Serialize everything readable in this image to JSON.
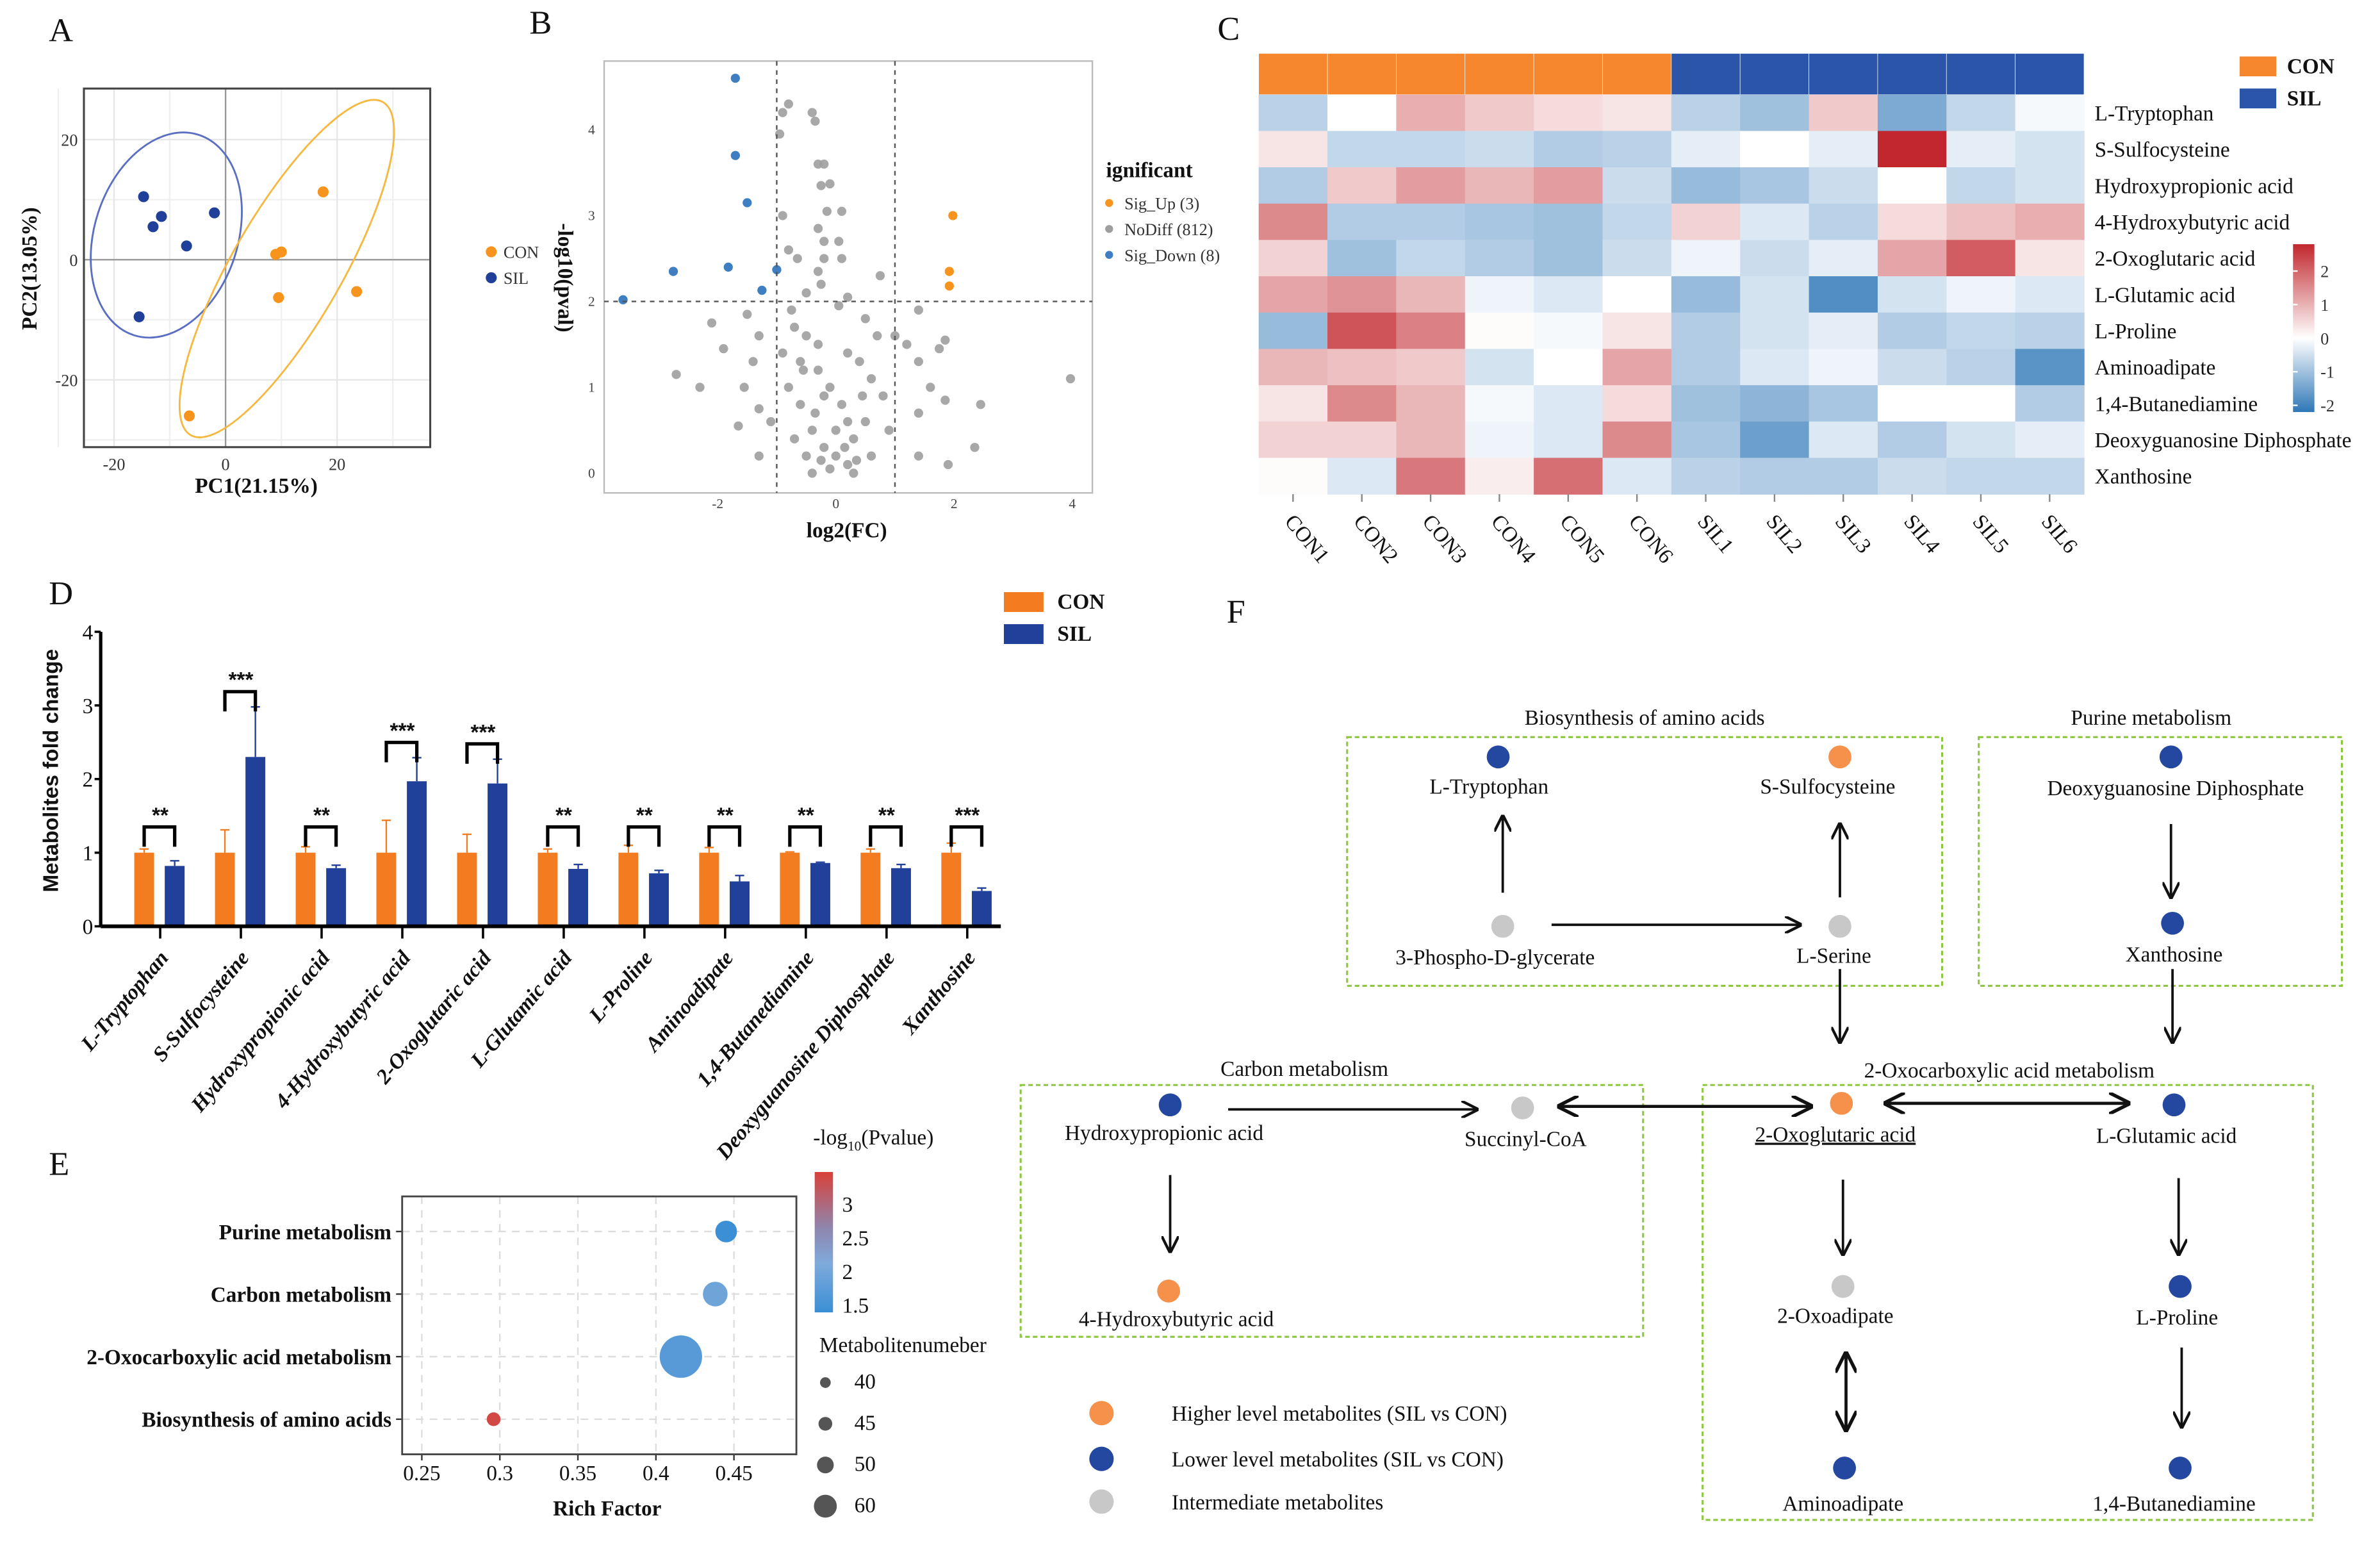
{
  "panel_labels": {
    "A": "A",
    "B": "B",
    "C": "C",
    "D": "D",
    "E": "E",
    "F": "F"
  },
  "colors": {
    "con": "#f7941d",
    "sil": "#1f3f99",
    "gray": "#9e9e9e",
    "sig_down": "#3f7fc1",
    "bar_con": "#f47c20",
    "bar_sil": "#21409a",
    "box": "#8dc63f",
    "hi_red": "#c1272d",
    "lo_blue": "#2f77b7"
  },
  "chart_data": [
    {
      "id": "A",
      "type": "scatter",
      "xlabel": "PC1(21.15%)",
      "ylabel": "PC2(13.05%)",
      "xlim": [
        -25.4,
        36.7
      ],
      "ylim": [
        -31.2,
        28.5
      ],
      "xticks": [
        "-20",
        "0",
        "20"
      ],
      "xtick_values": [
        -20,
        0,
        20
      ],
      "yticks": [
        "20",
        "0",
        "-20"
      ],
      "ytick_values": [
        20,
        0,
        -20
      ],
      "grid": true,
      "legend_placement": "right",
      "series": [
        {
          "name": "CON",
          "color": "#f7941d",
          "points": [
            [
              17.5,
              11.3
            ],
            [
              9,
              0.9
            ],
            [
              10,
              1.3
            ],
            [
              9.5,
              -6.3
            ],
            [
              23.5,
              -5.3
            ],
            [
              -6.5,
              -26
            ]
          ]
        },
        {
          "name": "SIL",
          "color": "#1f3f99",
          "points": [
            [
              -14.7,
              10.5
            ],
            [
              -13,
              5.5
            ],
            [
              -11.5,
              7.2
            ],
            [
              -7,
              2.3
            ],
            [
              -2,
              7.8
            ],
            [
              -15.5,
              -9.5
            ]
          ]
        }
      ]
    },
    {
      "id": "B",
      "type": "scatter",
      "xlabel": "log2(FC)",
      "ylabel": "-log10(pval)",
      "xlim": [
        -3.92,
        4.34
      ],
      "ylim": [
        -0.23,
        4.8
      ],
      "xticks": [
        "-2",
        "0",
        "2",
        "4"
      ],
      "xtick_values": [
        -2,
        0,
        2,
        4
      ],
      "yticks": [
        "0",
        "1",
        "2",
        "3",
        "4"
      ],
      "ytick_values": [
        0,
        1,
        2,
        3,
        4
      ],
      "thresholds": {
        "x": [
          -1,
          1
        ],
        "y": 2
      },
      "legend_title": "ignificant",
      "legend_placement": "right",
      "series": [
        {
          "name": "Sig_Up (3)",
          "color": "#f7941d",
          "points": [
            [
              1.98,
              3.0
            ],
            [
              1.92,
              2.35
            ],
            [
              1.92,
              2.18
            ]
          ]
        },
        {
          "name": "NoDiff (812)",
          "color": "#9e9e9e",
          "points": [
            [
              -0.8,
              4.3
            ],
            [
              -0.9,
              4.2
            ],
            [
              -0.4,
              4.2
            ],
            [
              -0.35,
              4.1
            ],
            [
              -0.95,
              3.95
            ],
            [
              -0.2,
              3.6
            ],
            [
              -0.3,
              3.6
            ],
            [
              -0.25,
              3.35
            ],
            [
              -0.1,
              3.37
            ],
            [
              -0.9,
              3.0
            ],
            [
              -0.15,
              3.05
            ],
            [
              0.1,
              3.05
            ],
            [
              -0.3,
              2.85
            ],
            [
              -0.2,
              2.7
            ],
            [
              0.05,
              2.7
            ],
            [
              -0.2,
              2.5
            ],
            [
              0.1,
              2.5
            ],
            [
              -0.8,
              2.6
            ],
            [
              -0.65,
              2.5
            ],
            [
              -0.3,
              2.35
            ],
            [
              0.75,
              2.3
            ],
            [
              -0.25,
              2.2
            ],
            [
              -0.5,
              2.1
            ],
            [
              0.2,
              2.05
            ],
            [
              0.05,
              1.95
            ],
            [
              1.4,
              1.9
            ],
            [
              -2.1,
              1.75
            ],
            [
              -1.5,
              1.85
            ],
            [
              -1.3,
              1.6
            ],
            [
              -1.9,
              1.45
            ],
            [
              -2.7,
              1.15
            ],
            [
              -2.3,
              1.0
            ],
            [
              -1.55,
              1.0
            ],
            [
              -1.3,
              0.75
            ],
            [
              -1.65,
              0.55
            ],
            [
              -1.3,
              0.2
            ],
            [
              -1.1,
              0.6
            ],
            [
              -1.4,
              1.3
            ],
            [
              -0.7,
              1.7
            ],
            [
              -0.5,
              1.6
            ],
            [
              -0.3,
              1.5
            ],
            [
              0.2,
              1.4
            ],
            [
              0.5,
              1.8
            ],
            [
              0.7,
              1.6
            ],
            [
              1.0,
              1.6
            ],
            [
              1.2,
              1.5
            ],
            [
              1.85,
              1.55
            ],
            [
              1.75,
              1.45
            ],
            [
              1.4,
              1.3
            ],
            [
              1.6,
              1.0
            ],
            [
              1.85,
              0.85
            ],
            [
              2.45,
              0.8
            ],
            [
              1.4,
              0.7
            ],
            [
              2.35,
              0.3
            ],
            [
              1.9,
              0.1
            ],
            [
              3.97,
              1.1
            ],
            [
              1.4,
              0.2
            ],
            [
              -0.8,
              1.0
            ],
            [
              -0.6,
              0.8
            ],
            [
              -0.4,
              0.5
            ],
            [
              -0.2,
              0.3
            ],
            [
              0,
              0.2
            ],
            [
              0.2,
              0.1
            ],
            [
              -0.1,
              0.05
            ],
            [
              0.3,
              0.4
            ],
            [
              0.5,
              0.6
            ],
            [
              0.6,
              1.1
            ],
            [
              0.8,
              0.9
            ],
            [
              -0.5,
              0.2
            ],
            [
              -0.3,
              1.2
            ],
            [
              0.1,
              0.8
            ],
            [
              0.4,
              1.3
            ],
            [
              -0.7,
              0.4
            ],
            [
              0.6,
              0.2
            ],
            [
              0.9,
              0.5
            ],
            [
              -0.9,
              1.4
            ],
            [
              0.0,
              0.5
            ],
            [
              -0.2,
              0.9
            ],
            [
              0.3,
              0.0
            ],
            [
              -0.4,
              0.0
            ],
            [
              -0.6,
              1.3
            ],
            [
              -0.1,
              1.0
            ],
            [
              0.2,
              0.6
            ],
            [
              -0.35,
              0.7
            ],
            [
              0.45,
              0.9
            ],
            [
              -0.75,
              1.9
            ],
            [
              -0.55,
              1.2
            ],
            [
              0.15,
              0.3
            ],
            [
              -0.25,
              0.15
            ],
            [
              0.35,
              0.15
            ]
          ]
        },
        {
          "name": "Sig_Down (8)",
          "color": "#3f7fc1",
          "points": [
            [
              -1.7,
              4.6
            ],
            [
              -1.7,
              3.7
            ],
            [
              -1.5,
              3.15
            ],
            [
              -2.75,
              2.35
            ],
            [
              -1.82,
              2.4
            ],
            [
              -1.0,
              2.37
            ],
            [
              -1.25,
              2.13
            ],
            [
              -3.6,
              2.02
            ]
          ]
        }
      ]
    },
    {
      "id": "C",
      "type": "heatmap",
      "columns": [
        "CON1",
        "CON2",
        "CON3",
        "CON4",
        "CON5",
        "CON6",
        "SIL1",
        "SIL2",
        "SIL3",
        "SIL4",
        "SIL5",
        "SIL6"
      ],
      "column_groups": [
        "CON",
        "CON",
        "CON",
        "CON",
        "CON",
        "CON",
        "SIL",
        "SIL",
        "SIL",
        "SIL",
        "SIL",
        "SIL"
      ],
      "group_legend": [
        {
          "name": "CON",
          "color": "#f7872e"
        },
        {
          "name": "SIL",
          "color": "#2b55a8"
        }
      ],
      "rows": [
        "L-Tryptophan",
        "S-Sulfocysteine",
        "Hydroxypropionic acid",
        "4-Hydroxybutyric acid",
        "2-Oxoglutaric acid",
        "L-Glutamic acid",
        "L-Proline",
        "Aminoadipate",
        "1,4-Butanediamine",
        "Deoxyguanosine Diphosphate",
        "Xanthosine"
      ],
      "values": [
        [
          -0.8,
          0,
          0.9,
          0.6,
          0.4,
          0.3,
          -0.8,
          -1.1,
          0.6,
          -1.5,
          -0.7,
          -0.1
        ],
        [
          0.3,
          -0.7,
          -0.7,
          -0.6,
          -0.9,
          -0.8,
          -0.3,
          0,
          -0.3,
          2.6,
          -0.3,
          -0.5
        ],
        [
          -0.9,
          0.6,
          1.1,
          0.8,
          1.1,
          -0.6,
          -1.2,
          -1.0,
          -0.6,
          0,
          -0.7,
          -0.5
        ],
        [
          1.3,
          -0.9,
          -0.9,
          -1.0,
          -1.1,
          -0.7,
          0.5,
          -0.4,
          -0.8,
          0.4,
          0.7,
          0.9
        ],
        [
          0.5,
          -1.1,
          -0.7,
          -0.9,
          -1.1,
          -0.6,
          -0.2,
          -0.6,
          -0.3,
          1.0,
          1.8,
          0.3
        ],
        [
          1.0,
          1.2,
          0.8,
          -0.2,
          -0.4,
          0,
          -1.2,
          -0.5,
          -2.0,
          -0.5,
          -0.2,
          -0.4
        ],
        [
          -1.2,
          1.9,
          1.4,
          0.05,
          -0.1,
          0.3,
          -0.9,
          -0.5,
          -0.3,
          -0.9,
          -0.7,
          -0.8
        ],
        [
          0.8,
          0.7,
          0.6,
          -0.5,
          0,
          1.0,
          -0.9,
          -0.4,
          -0.2,
          -0.6,
          -0.8,
          -1.9
        ],
        [
          0.3,
          1.3,
          0.8,
          -0.1,
          -0.4,
          0.4,
          -1.1,
          -1.3,
          -1.0,
          0,
          0,
          -0.9
        ],
        [
          0.5,
          0.5,
          0.8,
          -0.2,
          -0.4,
          1.3,
          -1.0,
          -1.7,
          -0.4,
          -0.9,
          -0.5,
          -0.3
        ],
        [
          0.05,
          -0.4,
          1.5,
          0.2,
          1.6,
          -0.4,
          -0.8,
          -0.9,
          -0.9,
          -0.6,
          -0.7,
          -0.7
        ]
      ],
      "colorbar": {
        "range": [
          -2.2,
          2.8
        ],
        "ticks": [
          "2",
          "1",
          "0",
          "-1",
          "-2"
        ],
        "tick_values": [
          2,
          1,
          0,
          -1,
          -2
        ],
        "low": "#2f77b7",
        "mid": "#ffffff",
        "high": "#c1272d"
      }
    },
    {
      "id": "D",
      "type": "bar",
      "ylabel": "Metabolites fold change",
      "ylim": [
        0,
        4
      ],
      "yticks": [
        "0",
        "1",
        "2",
        "3",
        "4"
      ],
      "ytick_values": [
        0,
        1,
        2,
        3,
        4
      ],
      "legend_placement": "top-right",
      "categories": [
        "L-Tryptophan",
        "S-Sulfocysteine",
        "Hydroxypropionic acid",
        "4-Hydroxybutyric acid",
        "2-Oxoglutaric acid",
        "L-Glutamic acid",
        "L-Proline",
        "Aminoadipate",
        "1,4-Butanediamine",
        "Deoxyguanosine Diphosphate",
        "Xanthosine"
      ],
      "series": [
        {
          "name": "CON",
          "color": "#f47c20",
          "values": [
            1,
            1,
            1,
            1,
            1,
            1,
            1,
            1,
            1,
            1,
            1
          ],
          "errors": [
            0.05,
            0.31,
            0.08,
            0.44,
            0.25,
            0.05,
            0.1,
            0.07,
            0.01,
            0.05,
            0.13
          ]
        },
        {
          "name": "SIL",
          "color": "#21409a",
          "values": [
            0.82,
            2.3,
            0.79,
            1.97,
            1.94,
            0.78,
            0.72,
            0.61,
            0.86,
            0.79,
            0.48
          ],
          "errors": [
            0.07,
            0.68,
            0.04,
            0.32,
            0.33,
            0.06,
            0.04,
            0.08,
            0.01,
            0.05,
            0.04
          ]
        }
      ],
      "significance": [
        "**",
        "***",
        "**",
        "***",
        "***",
        "**",
        "**",
        "**",
        "**",
        "**",
        "***"
      ]
    },
    {
      "id": "E",
      "type": "scatter",
      "xlabel": "Rich Factor",
      "xlim": [
        0.2374,
        0.49
      ],
      "xticks": [
        "0.25",
        "0.3",
        "0.35",
        "0.4",
        "0.45"
      ],
      "xtick_values": [
        0.25,
        0.3,
        0.35,
        0.4,
        0.45
      ],
      "categories": [
        "Purine metabolism",
        "Carbon metabolism",
        "2-Oxocarboxylic acid metabolism",
        "Biosynthesis of amino acids"
      ],
      "rich_factor": [
        0.445,
        0.438,
        0.416,
        0.296
      ],
      "neg_log10_p": [
        1.4,
        1.95,
        1.7,
        3.4
      ],
      "metabolite_number": [
        58,
        63,
        92,
        45
      ],
      "color_legend": {
        "title_prefix": "-log",
        "title_sub": "10",
        "title_suffix": "(Pvalue)",
        "range": [
          1.39,
          3.48
        ],
        "ticks": [
          "3",
          "2.5",
          "2",
          "1.5"
        ],
        "tick_values": [
          3,
          2.5,
          2,
          1.5
        ],
        "low": "#3a8fd4",
        "high": "#d9413a"
      },
      "size_legend": {
        "title": "Metabolitenumeber",
        "labels": [
          "40",
          "45",
          "50",
          "60"
        ],
        "values": [
          40,
          45,
          50,
          60
        ]
      },
      "grid": true
    }
  ],
  "pathway": {
    "boxes": [
      {
        "title": "Biosynthesis of amino acids"
      },
      {
        "title": "Purine metabolism"
      },
      {
        "title": "Carbon metabolism"
      },
      {
        "title": "2-Oxocarboxylic acid metabolism"
      }
    ],
    "nodes": [
      {
        "label": "L-Tryptophan",
        "level": "lower"
      },
      {
        "label": "S-Sulfocysteine",
        "level": "higher"
      },
      {
        "label": "Deoxyguanosine Diphosphate",
        "level": "lower"
      },
      {
        "label": "3-Phospho-D-glycerate",
        "level": "intermediate"
      },
      {
        "label": "L-Serine",
        "level": "intermediate"
      },
      {
        "label": "Xanthosine",
        "level": "lower"
      },
      {
        "label": "Hydroxypropionic acid",
        "level": "lower"
      },
      {
        "label": "Succinyl-CoA",
        "level": "intermediate"
      },
      {
        "label": "2-Oxoglutaric acid",
        "level": "higher",
        "highlighted": true
      },
      {
        "label": "L-Glutamic acid",
        "level": "lower"
      },
      {
        "label": "4-Hydroxybutyric acid",
        "level": "higher"
      },
      {
        "label": "2-Oxoadipate",
        "level": "intermediate"
      },
      {
        "label": "L-Proline",
        "level": "lower"
      },
      {
        "label": "Aminoadipate",
        "level": "lower"
      },
      {
        "label": "1,4-Butanediamine",
        "level": "lower"
      }
    ],
    "legend": [
      {
        "level": "higher",
        "label": "Higher level metabolites (SIL vs CON)",
        "color": "#f5914a"
      },
      {
        "level": "lower",
        "label": "Lower level metabolites (SIL vs CON)",
        "color": "#2447a0"
      },
      {
        "level": "intermediate",
        "label": "Intermediate metabolites",
        "color": "#c8c8c8"
      }
    ]
  }
}
